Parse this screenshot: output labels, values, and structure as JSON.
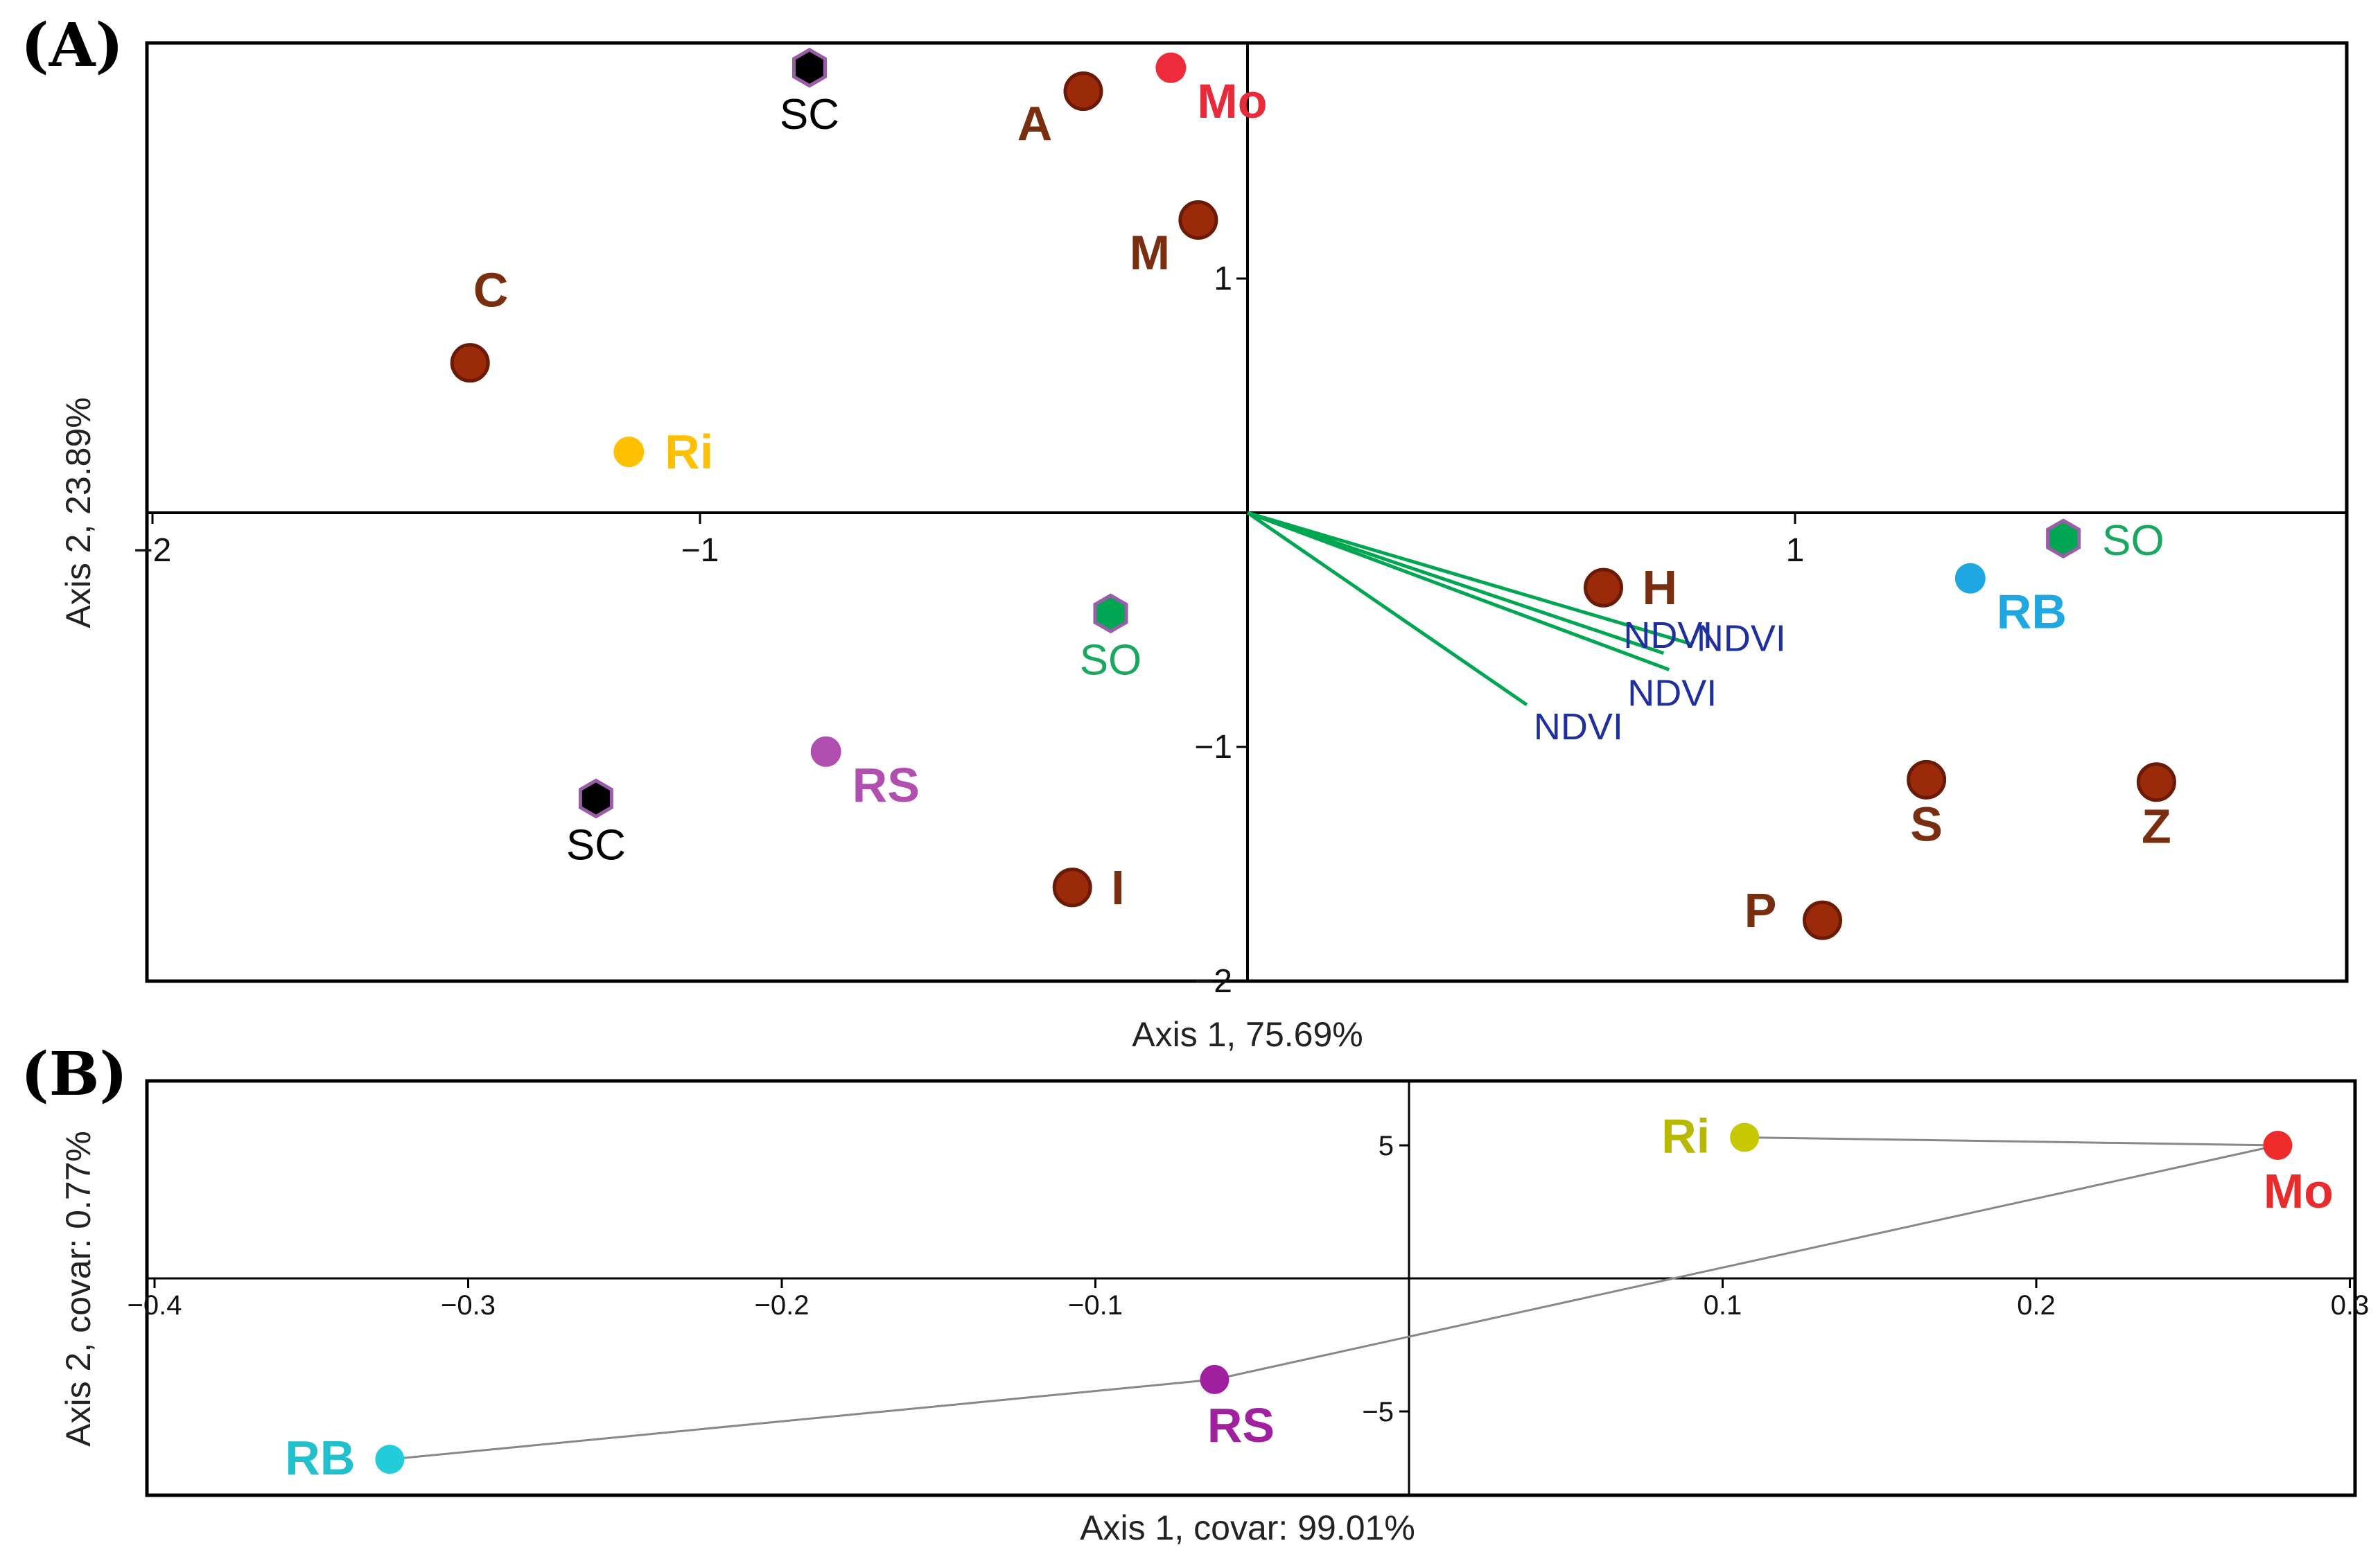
{
  "chart_data": [
    {
      "type": "scatter",
      "panel_label": "(A)",
      "xlabel": "Axis 1, 75.69%",
      "ylabel": "Axis 2, 23.89%",
      "xlim": [
        -2,
        2
      ],
      "ylim": [
        -2,
        2
      ],
      "x_ticks": [
        {
          "value": -2,
          "label": "−2"
        },
        {
          "value": -1,
          "label": "−1"
        },
        {
          "value": 1,
          "label": "1"
        }
      ],
      "y_ticks": [
        {
          "value": 1,
          "label": "1"
        },
        {
          "value": -1,
          "label": "−1"
        },
        {
          "value": -2,
          "label": "−2"
        }
      ],
      "points": [
        {
          "label": "SC",
          "x": -0.8,
          "y": 1.9,
          "marker": "hexagon",
          "color": "#000000",
          "label_color": "#000000",
          "label_pos": "below",
          "bold": false
        },
        {
          "label": "A",
          "x": -0.3,
          "y": 1.8,
          "marker": "circle",
          "color": "#9a2a0a",
          "label_color": "#7a2e10",
          "label_pos": "below-left",
          "bold": true
        },
        {
          "label": "Mo",
          "x": -0.14,
          "y": 1.9,
          "marker": "dot",
          "color": "#ee2b3b",
          "label_color": "#e82b3a",
          "label_pos": "below-right",
          "bold": true
        },
        {
          "label": "M",
          "x": -0.09,
          "y": 1.25,
          "marker": "circle",
          "color": "#9a2a0a",
          "label_color": "#7a2e10",
          "label_pos": "below-left",
          "bold": true
        },
        {
          "label": "C",
          "x": -1.42,
          "y": 0.64,
          "marker": "circle",
          "color": "#9a2a0a",
          "label_color": "#7a2e10",
          "label_pos": "above",
          "bold": true
        },
        {
          "label": "Ri",
          "x": -1.13,
          "y": 0.26,
          "marker": "dot",
          "color": "#ffc000",
          "label_color": "#ffc000",
          "label_pos": "right",
          "bold": true
        },
        {
          "label": "SO",
          "x": -0.25,
          "y": -0.43,
          "marker": "hexagon",
          "color": "#00a651",
          "label_color": "#1aa860",
          "label_pos": "below",
          "bold": false
        },
        {
          "label": "RS",
          "x": -0.77,
          "y": -1.02,
          "marker": "dot",
          "color": "#b04fb0",
          "label_color": "#b04fb0",
          "label_pos": "below-right",
          "bold": true
        },
        {
          "label": "SC",
          "x": -1.19,
          "y": -1.22,
          "marker": "hexagon",
          "color": "#000000",
          "label_color": "#000000",
          "label_pos": "below",
          "bold": false
        },
        {
          "label": "I",
          "x": -0.32,
          "y": -1.6,
          "marker": "circle",
          "color": "#9a2a0a",
          "label_color": "#7a2e10",
          "label_pos": "right",
          "bold": true
        },
        {
          "label": "H",
          "x": 0.65,
          "y": -0.32,
          "marker": "circle",
          "color": "#9a2a0a",
          "label_color": "#7a2e10",
          "label_pos": "right",
          "bold": true
        },
        {
          "label": "SO",
          "x": 1.49,
          "y": -0.11,
          "marker": "hexagon",
          "color": "#00a651",
          "label_color": "#1aa860",
          "label_pos": "right",
          "bold": false
        },
        {
          "label": "RB",
          "x": 1.32,
          "y": -0.28,
          "marker": "dot",
          "color": "#1ea7e1",
          "label_color": "#1ea7e1",
          "label_pos": "below-right",
          "bold": true
        },
        {
          "label": "S",
          "x": 1.24,
          "y": -1.14,
          "marker": "circle",
          "color": "#9a2a0a",
          "label_color": "#7a2e10",
          "label_pos": "below",
          "bold": true
        },
        {
          "label": "Z",
          "x": 1.66,
          "y": -1.15,
          "marker": "circle",
          "color": "#9a2a0a",
          "label_color": "#7a2e10",
          "label_pos": "below",
          "bold": true
        },
        {
          "label": "P",
          "x": 1.05,
          "y": -1.74,
          "marker": "circle",
          "color": "#9a2a0a",
          "label_color": "#7a2e10",
          "label_pos": "left",
          "bold": true
        }
      ],
      "vectors": [
        {
          "label": "NDVI",
          "x": 0.81,
          "y": -0.56
        },
        {
          "label": "NDVI",
          "x": 0.76,
          "y": -0.6
        },
        {
          "label": "NDVI",
          "x": 0.77,
          "y": -0.67
        },
        {
          "label": "NDVI",
          "x": 0.51,
          "y": -0.82
        }
      ],
      "vector_color": "#00a651",
      "grid": false
    },
    {
      "type": "scatter",
      "panel_label": "(B)",
      "xlabel": "Axis 1, covar: 99.01%",
      "ylabel": "Axis 2, covar: 0.77%",
      "xlim": [
        -0.4,
        0.3
      ],
      "ylim": [
        -8,
        8
      ],
      "x_ticks": [
        {
          "value": -0.4,
          "label": "−0.4"
        },
        {
          "value": -0.3,
          "label": "−0.3"
        },
        {
          "value": -0.2,
          "label": "−0.2"
        },
        {
          "value": -0.1,
          "label": "−0.1"
        },
        {
          "value": 0.1,
          "label": "0.1"
        },
        {
          "value": 0.2,
          "label": "0.2"
        },
        {
          "value": 0.3,
          "label": "0.3"
        }
      ],
      "y_ticks": [
        {
          "value": 5,
          "label": "5"
        },
        {
          "value": -5,
          "label": "−5"
        }
      ],
      "points": [
        {
          "label": "Ri",
          "x": 0.107,
          "y": 5.3,
          "color": "#c8c800",
          "label_color": "#b8b800",
          "label_pos": "left"
        },
        {
          "label": "Mo",
          "x": 0.277,
          "y": 5.0,
          "color": "#ee2b2b",
          "label_color": "#e82b2b",
          "label_pos": "below"
        },
        {
          "label": "RS",
          "x": -0.062,
          "y": -3.8,
          "color": "#a020a0",
          "label_color": "#a020a0",
          "label_pos": "below"
        },
        {
          "label": "RB",
          "x": -0.325,
          "y": -6.8,
          "color": "#22ccd8",
          "label_color": "#20c0cc",
          "label_pos": "left"
        }
      ],
      "path_order": [
        "Ri",
        "Mo",
        "RS",
        "RB"
      ],
      "line_color": "#888888",
      "grid": false
    }
  ]
}
